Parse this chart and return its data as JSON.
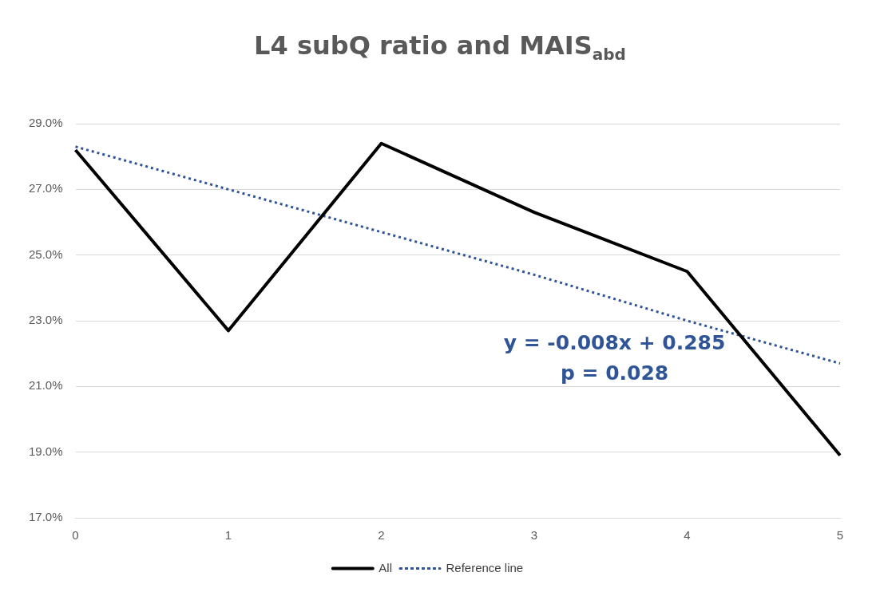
{
  "chart_data": {
    "type": "line",
    "title": "L4 subQ ratio and MAIS$_{abd}$",
    "categories": [
      "0",
      "1",
      "2",
      "3",
      "4",
      "5"
    ],
    "series": [
      {
        "name": "All",
        "color": "#000000",
        "line_style": "solid",
        "values": [
          28.2,
          22.7,
          28.4,
          26.3,
          24.5,
          18.9
        ]
      },
      {
        "name": "Reference line",
        "color": "#2f5597",
        "line_style": "dotted",
        "values": [
          28.3,
          27.0,
          25.7,
          24.4,
          23.0,
          21.7
        ]
      }
    ],
    "ylim": [
      17,
      29
    ],
    "yticks": [
      {
        "value": 17,
        "label": "17.0%"
      },
      {
        "value": 19,
        "label": "19.0%"
      },
      {
        "value": 21,
        "label": "21.0%"
      },
      {
        "value": 23,
        "label": "23.0%"
      },
      {
        "value": 25,
        "label": "25.0%"
      },
      {
        "value": 27,
        "label": "27.0%"
      },
      {
        "value": 29,
        "label": "29.0%"
      }
    ],
    "annotations": [
      "y = -0.008x + 0.285",
      "p = 0.028"
    ],
    "grid": "y",
    "legend": "bottom",
    "marker": "none"
  }
}
